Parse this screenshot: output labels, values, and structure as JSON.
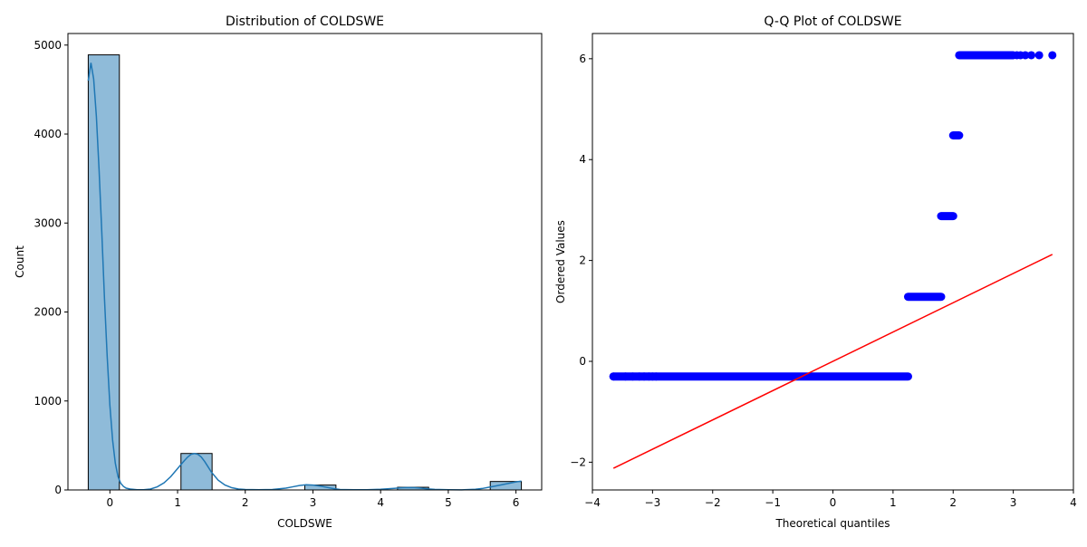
{
  "chart_data": [
    {
      "type": "bar",
      "title": "Distribution of COLDSWE",
      "xlabel": "COLDSWE",
      "ylabel": "Count",
      "xlim": [
        -0.62,
        6.38
      ],
      "ylim": [
        0,
        5130
      ],
      "x_ticks": [
        0,
        1,
        2,
        3,
        4,
        5,
        6
      ],
      "y_ticks": [
        0,
        1000,
        2000,
        3000,
        4000,
        5000
      ],
      "bins": [
        {
          "x0": -0.32,
          "x1": 0.14,
          "count": 4890
        },
        {
          "x0": 1.05,
          "x1": 1.51,
          "count": 410
        },
        {
          "x0": 2.88,
          "x1": 3.34,
          "count": 55
        },
        {
          "x0": 4.25,
          "x1": 4.71,
          "count": 30
        },
        {
          "x0": 5.62,
          "x1": 6.08,
          "count": 95
        }
      ],
      "kde": {
        "x": [
          -0.32,
          -0.28,
          -0.24,
          -0.2,
          -0.16,
          -0.12,
          -0.08,
          -0.04,
          0.0,
          0.04,
          0.08,
          0.12,
          0.16,
          0.2,
          0.24,
          0.3,
          0.4,
          0.5,
          0.6,
          0.7,
          0.8,
          0.9,
          1.0,
          1.05,
          1.1,
          1.15,
          1.2,
          1.25,
          1.3,
          1.35,
          1.4,
          1.45,
          1.5,
          1.6,
          1.7,
          1.8,
          1.9,
          2.0,
          2.2,
          2.4,
          2.6,
          2.7,
          2.8,
          2.9,
          3.0,
          3.1,
          3.2,
          3.3,
          3.4,
          3.6,
          3.8,
          4.0,
          4.2,
          4.3,
          4.4,
          4.5,
          4.6,
          4.7,
          4.8,
          5.0,
          5.2,
          5.4,
          5.5,
          5.6,
          5.7,
          5.8,
          5.9,
          6.0,
          6.08
        ],
        "y": [
          4600,
          4800,
          4620,
          4200,
          3600,
          2900,
          2150,
          1500,
          950,
          560,
          300,
          150,
          75,
          40,
          20,
          10,
          3,
          2,
          10,
          35,
          80,
          150,
          240,
          285,
          330,
          370,
          400,
          410,
          400,
          370,
          320,
          260,
          200,
          110,
          55,
          25,
          10,
          5,
          3,
          5,
          20,
          35,
          50,
          58,
          55,
          45,
          30,
          15,
          5,
          2,
          3,
          8,
          18,
          24,
          27,
          25,
          20,
          12,
          6,
          2,
          1,
          8,
          16,
          30,
          45,
          60,
          75,
          90,
          100
        ]
      },
      "bar_color": "#1f77b4",
      "bar_opacity": 0.5,
      "edge_color": "#000000",
      "kde_color": "#1f77b4"
    },
    {
      "type": "scatter",
      "title": "Q-Q Plot of COLDSWE",
      "xlabel": "Theoretical quantiles",
      "ylabel": "Ordered Values",
      "xlim": [
        -4.0,
        4.0
      ],
      "ylim": [
        -2.55,
        6.5
      ],
      "x_ticks": [
        -4,
        -3,
        -2,
        -1,
        0,
        1,
        2,
        3,
        4
      ],
      "y_ticks": [
        -2,
        0,
        2,
        4,
        6
      ],
      "steps": [
        {
          "y": -0.3,
          "x_start": -3.65,
          "x_end": 1.25,
          "outliers": [
            -3.65,
            -3.45,
            -3.33,
            -3.22,
            -3.14,
            -3.06,
            -3.0,
            -2.94
          ]
        },
        {
          "y": 1.28,
          "x_start": 1.25,
          "x_end": 1.8,
          "outliers": []
        },
        {
          "y": 2.88,
          "x_start": 1.8,
          "x_end": 2.0,
          "outliers": []
        },
        {
          "y": 4.48,
          "x_start": 2.0,
          "x_end": 2.1,
          "outliers": []
        },
        {
          "y": 6.07,
          "x_start": 2.1,
          "x_end": 3.0,
          "outliers": [
            3.06,
            3.12,
            3.2,
            3.3,
            3.43,
            3.65
          ]
        }
      ],
      "fit_line": {
        "x": [
          -3.65,
          3.65
        ],
        "y": [
          -2.12,
          2.12
        ]
      },
      "point_color": "#0000ff",
      "line_color": "#ff0000"
    }
  ]
}
